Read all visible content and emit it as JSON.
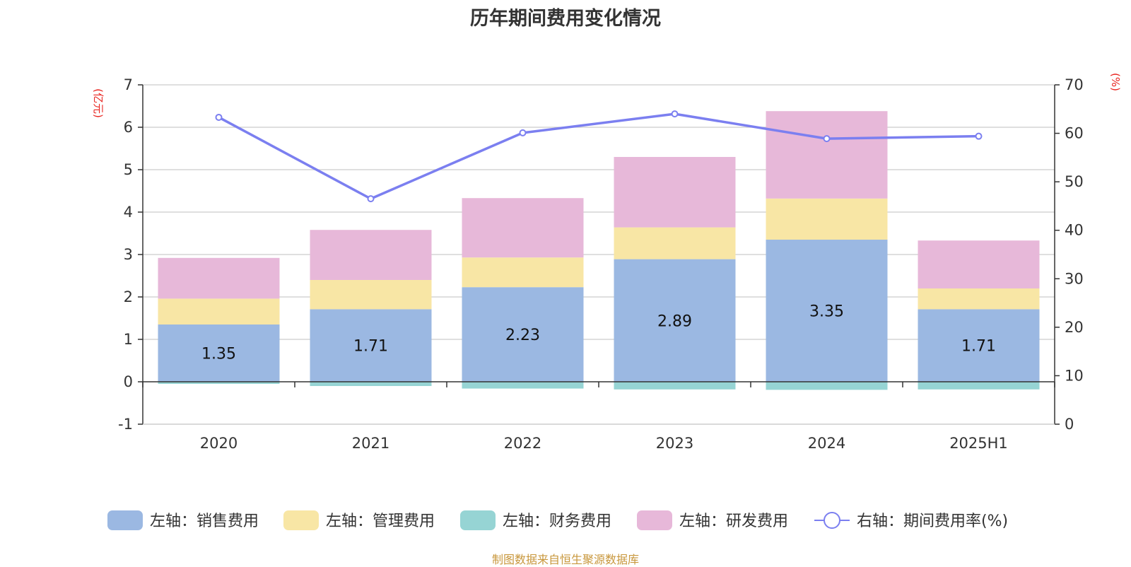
{
  "title": "历年期间费用变化情况",
  "source_note": "制图数据来自恒生聚源数据库",
  "colors": {
    "sales": "#9bb8e2",
    "admin": "#f8e6a5",
    "finance": "#96d4d4",
    "rnd": "#e7b8d9",
    "rate": "#7b7ff0",
    "unit": "#e8231e",
    "grid": "#cccccc",
    "axis": "#333333"
  },
  "chart_data": {
    "type": "bar",
    "stacked": true,
    "title": "历年期间费用变化情况",
    "categories": [
      "2020",
      "2021",
      "2022",
      "2023",
      "2024",
      "2025H1"
    ],
    "left_axis": {
      "unit": "(亿元)",
      "ylim": [
        -1,
        7
      ],
      "ticks": [
        "-1",
        "0",
        "1",
        "2",
        "3",
        "4",
        "5",
        "6",
        "7"
      ]
    },
    "right_axis": {
      "unit": "(%)",
      "ylim": [
        0,
        70
      ],
      "ticks": [
        "0",
        "10",
        "20",
        "30",
        "40",
        "50",
        "60",
        "70"
      ]
    },
    "grid": true,
    "legend_position": "bottom",
    "series": [
      {
        "name": "左轴：销售费用",
        "key": "sales",
        "axis": "left",
        "type": "bar",
        "values": [
          1.35,
          1.71,
          2.23,
          2.89,
          3.35,
          1.71
        ],
        "labels": [
          "1.35",
          "1.71",
          "2.23",
          "2.89",
          "3.35",
          "1.71"
        ]
      },
      {
        "name": "左轴：管理费用",
        "key": "admin",
        "axis": "left",
        "type": "bar",
        "values": [
          0.61,
          0.69,
          0.7,
          0.75,
          0.97,
          0.49
        ]
      },
      {
        "name": "左轴：财务费用",
        "key": "finance",
        "axis": "left",
        "type": "bar",
        "values": [
          -0.05,
          -0.1,
          -0.16,
          -0.18,
          -0.19,
          -0.18
        ]
      },
      {
        "name": "左轴：研发费用",
        "key": "rnd",
        "axis": "left",
        "type": "bar",
        "values": [
          0.96,
          1.18,
          1.4,
          1.66,
          2.06,
          1.13
        ]
      },
      {
        "name": "右轴：期间费用率(%)",
        "key": "rate",
        "axis": "right",
        "type": "line",
        "values": [
          63.3,
          46.5,
          60.1,
          64.0,
          58.9,
          59.4
        ]
      }
    ]
  }
}
